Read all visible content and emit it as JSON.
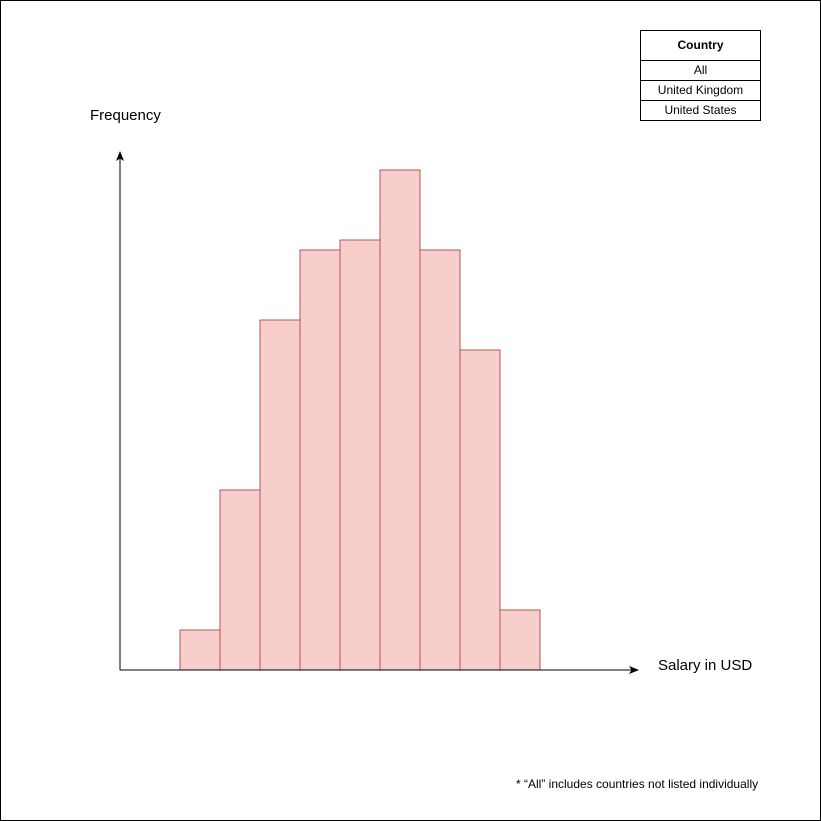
{
  "legend": {
    "title": "Country",
    "options": [
      "All",
      "United Kingdom",
      "United States"
    ]
  },
  "footnote": "* “All” includes countries not listed individually",
  "colors": {
    "bar_fill": "#f8cecc",
    "bar_stroke": "#b85450",
    "axis": "#000000"
  },
  "chart_data": {
    "type": "bar",
    "xlabel": "Salary in USD",
    "ylabel": "Frequency",
    "bins": 9,
    "values": [
      40,
      180,
      350,
      420,
      430,
      500,
      420,
      320,
      60
    ],
    "ylim": [
      0,
      520
    ],
    "grid": false,
    "legend_position": "top-right"
  }
}
